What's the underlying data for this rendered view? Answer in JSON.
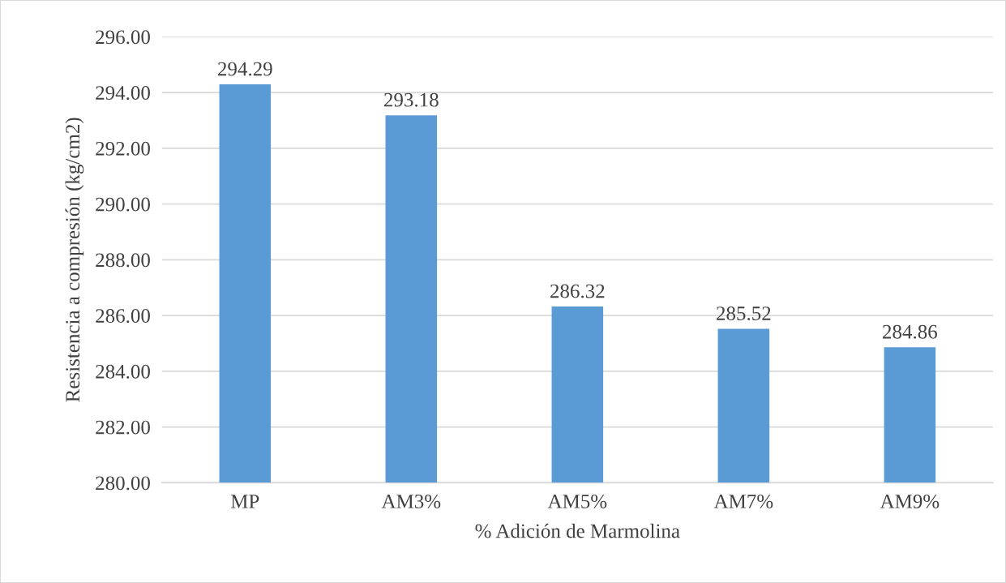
{
  "chart_data": {
    "type": "bar",
    "xlabel": "% Adición de Marmolina",
    "ylabel": "Resistencia a compresión (kg/cm2)",
    "categories": [
      "MP",
      "AM3%",
      "AM5%",
      "AM7%",
      "AM9%"
    ],
    "values": [
      294.29,
      293.18,
      286.32,
      285.52,
      284.86
    ],
    "color": "#5b9bd5",
    "ylim": [
      280,
      296
    ],
    "yticks": [
      {
        "value": 280,
        "label": "280.00"
      },
      {
        "value": 282,
        "label": "282.00"
      },
      {
        "value": 284,
        "label": "284.00"
      },
      {
        "value": 286,
        "label": "286.00"
      },
      {
        "value": 288,
        "label": "288.00"
      },
      {
        "value": 290,
        "label": "290.00"
      },
      {
        "value": 292,
        "label": "292.00"
      },
      {
        "value": 294,
        "label": "294.00"
      },
      {
        "value": 296,
        "label": "296.00"
      }
    ],
    "grid": "y",
    "data_labels": true
  }
}
